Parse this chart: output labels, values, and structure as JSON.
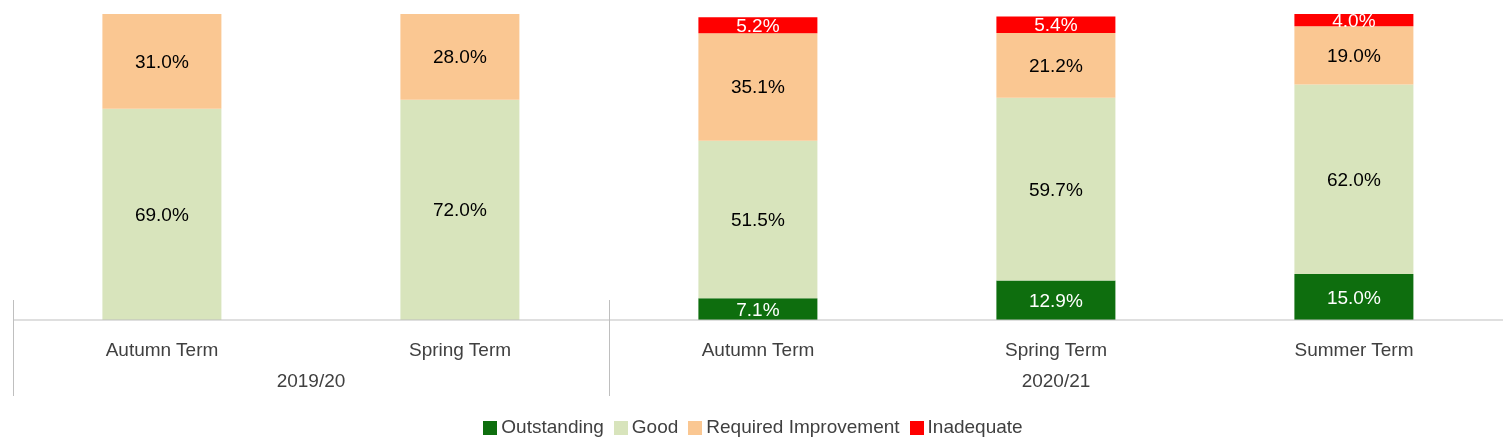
{
  "chart_data": {
    "type": "bar",
    "stacked": true,
    "categories": [
      "Autumn Term",
      "Spring Term",
      "Autumn Term",
      "Spring Term",
      "Summer Term"
    ],
    "annotations": [
      "2019/20",
      "2020/21"
    ],
    "series": [
      {
        "name": "Outstanding",
        "color": "#0e6e0e",
        "values": [
          null,
          null,
          7.1,
          12.9,
          15.0
        ],
        "value_labels": [
          null,
          null,
          "7.1%",
          "12.9%",
          "15.0%"
        ]
      },
      {
        "name": "Good",
        "color": "#d8e4bc",
        "values": [
          69.0,
          72.0,
          51.5,
          59.7,
          62.0
        ],
        "value_labels": [
          "69.0%",
          "72.0%",
          "51.5%",
          "59.7%",
          "62.0%"
        ]
      },
      {
        "name": "Required Improvement",
        "color": "#fac792",
        "values": [
          31.0,
          28.0,
          35.1,
          21.2,
          19.0
        ],
        "value_labels": [
          "31.0%",
          "28.0%",
          "35.1%",
          "21.2%",
          "19.0%"
        ]
      },
      {
        "name": "Inadequate",
        "color": "#ff0000",
        "values": [
          null,
          null,
          5.2,
          5.4,
          4.0
        ],
        "value_labels": [
          null,
          null,
          "5.2%",
          "5.4%",
          "4.0%"
        ]
      }
    ],
    "legend": "bottom"
  }
}
